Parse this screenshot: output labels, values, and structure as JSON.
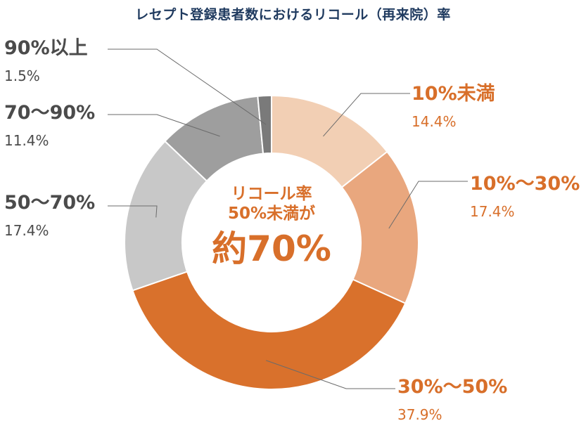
{
  "chart_data": {
    "type": "pie",
    "title": "レセプト登録患者数におけるリコール（再来院）率",
    "categories": [
      "10%未満",
      "10%～30%",
      "30%～50%",
      "50～70%",
      "70～90%",
      "90%以上"
    ],
    "values": [
      14.4,
      17.4,
      37.9,
      17.4,
      11.4,
      1.5
    ],
    "value_labels": [
      "14.4%",
      "17.4%",
      "37.9%",
      "17.4%",
      "11.4%",
      "1.5%"
    ],
    "colors": [
      "#f2cfb4",
      "#e9a77e",
      "#d9712c",
      "#c8c8c8",
      "#9e9e9e",
      "#7a7a7a"
    ],
    "center_text": {
      "line1": "リコール率",
      "line2": "50%未満が",
      "line3": "約70%"
    }
  }
}
